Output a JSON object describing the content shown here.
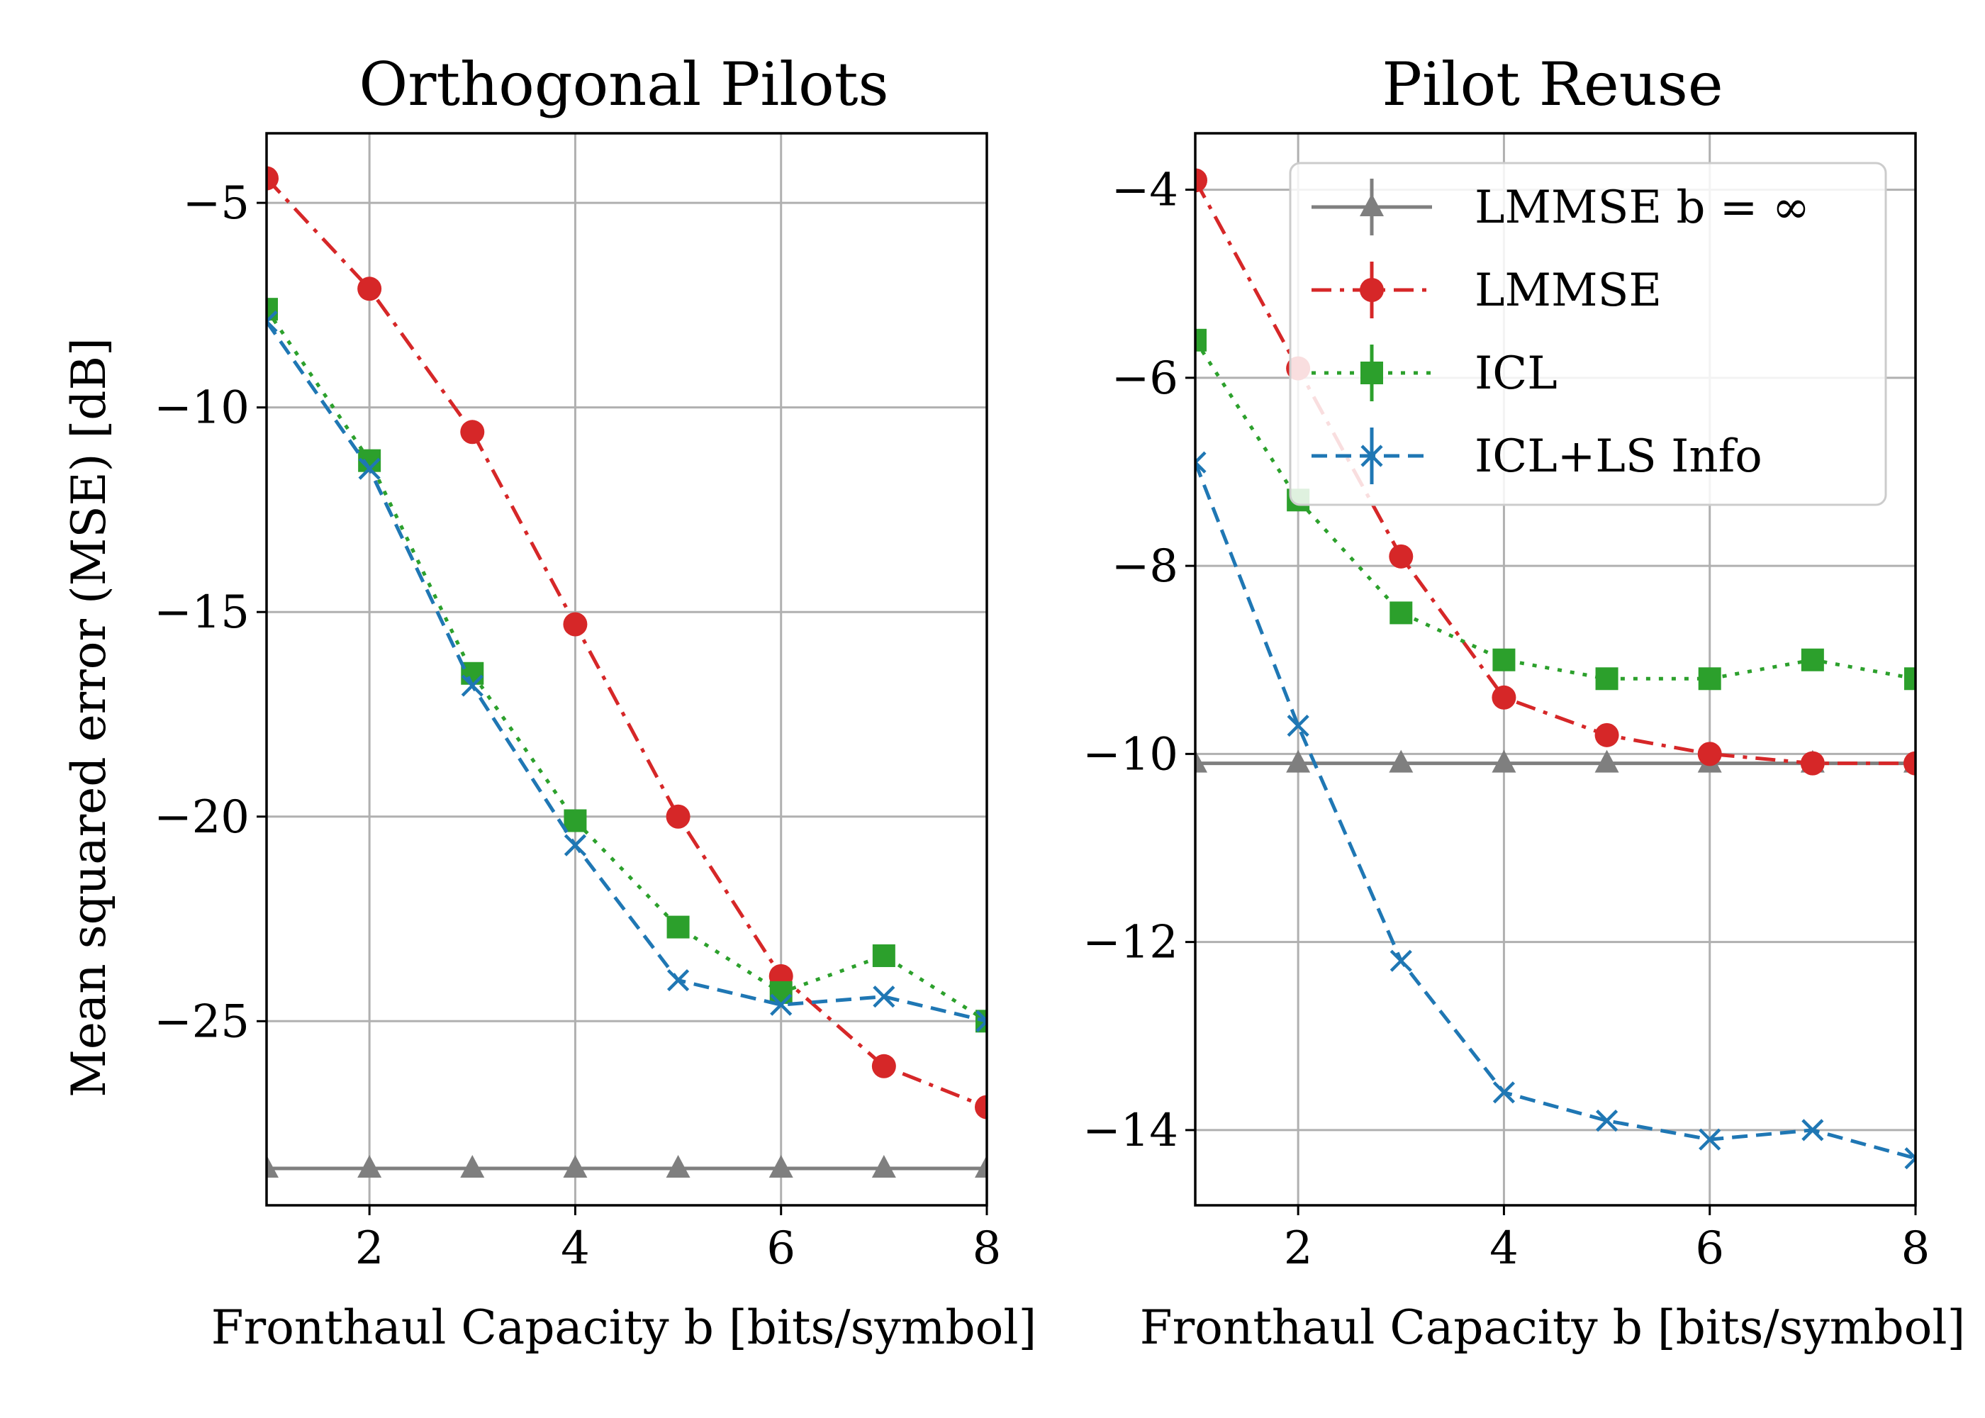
{
  "chart_data": [
    {
      "type": "line",
      "title": "Orthogonal Pilots",
      "xlabel": "Fronthaul Capacity b [bits/symbol]",
      "ylabel": "Mean squared error (MSE) [dB]",
      "xlim": [
        1,
        8
      ],
      "ylim": [
        -29.5,
        -3.3
      ],
      "xticks": [
        2,
        4,
        6,
        8
      ],
      "xtick_labels": [
        "2",
        "4",
        "6",
        "8"
      ],
      "yticks": [
        -5,
        -10,
        -15,
        -20,
        -25
      ],
      "ytick_labels": [
        "−5",
        "−10",
        "−15",
        "−20",
        "−25"
      ],
      "x": [
        1,
        2,
        3,
        4,
        5,
        6,
        7,
        8
      ],
      "series": [
        {
          "name": "LMMSE b = ∞",
          "color": "#7f7f7f",
          "marker": "triangle",
          "dash": "solid",
          "values": [
            -28.6,
            -28.6,
            -28.6,
            -28.6,
            -28.6,
            -28.6,
            -28.6,
            -28.6
          ]
        },
        {
          "name": "LMMSE",
          "color": "#d62728",
          "marker": "circle",
          "dash": "dashdot",
          "values": [
            -4.4,
            -7.1,
            -10.6,
            -15.3,
            -20.0,
            -23.9,
            -26.1,
            -27.1
          ]
        },
        {
          "name": "ICL",
          "color": "#2ca02c",
          "marker": "square",
          "dash": "dotted",
          "values": [
            -7.6,
            -11.3,
            -16.5,
            -20.1,
            -22.7,
            -24.3,
            -23.4,
            -25.0
          ]
        },
        {
          "name": "ICL+LS Info",
          "color": "#1f77b4",
          "marker": "x",
          "dash": "dashed",
          "values": [
            -7.9,
            -11.5,
            -16.8,
            -20.7,
            -24.0,
            -24.6,
            -24.4,
            -25.0
          ]
        }
      ]
    },
    {
      "type": "line",
      "title": "Pilot Reuse",
      "xlabel": "Fronthaul Capacity b [bits/symbol]",
      "ylabel": "",
      "xlim": [
        1,
        8
      ],
      "ylim": [
        -14.8,
        -3.4
      ],
      "xticks": [
        2,
        4,
        6,
        8
      ],
      "xtick_labels": [
        "2",
        "4",
        "6",
        "8"
      ],
      "yticks": [
        -4,
        -6,
        -8,
        -10,
        -12,
        -14
      ],
      "ytick_labels": [
        "−4",
        "−6",
        "−8",
        "−10",
        "−12",
        "−14"
      ],
      "x": [
        1,
        2,
        3,
        4,
        5,
        6,
        7,
        8
      ],
      "legend": "top-right",
      "series": [
        {
          "name": "LMMSE b = ∞",
          "color": "#7f7f7f",
          "marker": "triangle",
          "dash": "solid",
          "values": [
            -10.1,
            -10.1,
            -10.1,
            -10.1,
            -10.1,
            -10.1,
            -10.1,
            -10.1
          ]
        },
        {
          "name": "LMMSE",
          "color": "#d62728",
          "marker": "circle",
          "dash": "dashdot",
          "values": [
            -3.9,
            -5.9,
            -7.9,
            -9.4,
            -9.8,
            -10.0,
            -10.1,
            -10.1
          ]
        },
        {
          "name": "ICL",
          "color": "#2ca02c",
          "marker": "square",
          "dash": "dotted",
          "values": [
            -5.6,
            -7.3,
            -8.5,
            -9.0,
            -9.2,
            -9.2,
            -9.0,
            -9.2
          ]
        },
        {
          "name": "ICL+LS Info",
          "color": "#1f77b4",
          "marker": "x",
          "dash": "dashed",
          "values": [
            -6.9,
            -9.7,
            -12.2,
            -13.6,
            -13.9,
            -14.1,
            -14.0,
            -14.3
          ]
        }
      ]
    }
  ],
  "legend": {
    "entries": [
      "LMMSE b = ∞",
      "LMMSE",
      "ICL",
      "ICL+LS Info"
    ]
  }
}
